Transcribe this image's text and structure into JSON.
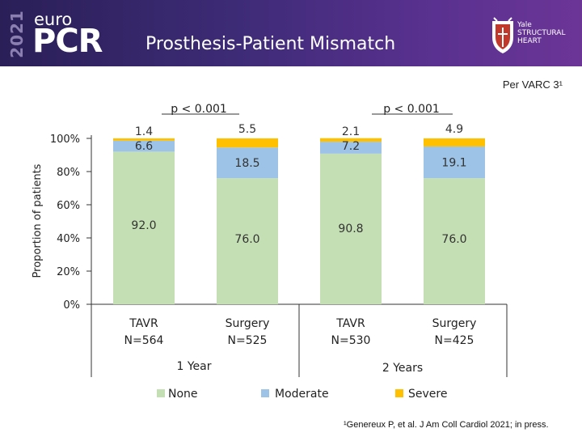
{
  "header": {
    "logo_year": "2021",
    "logo_euro": "euro",
    "logo_pcr": "PCR",
    "title": "Prosthesis-Patient Mismatch",
    "yale_lines": [
      "Yale",
      "STRUCTURAL",
      "HEART"
    ]
  },
  "note": "Per VARC 3¹",
  "footnote": "¹Genereux P, et al. J Am Coll Cardiol 2021; in press.",
  "colors": {
    "none": "#c5dfb4",
    "moderate": "#9dc3e6",
    "severe": "#ffc000",
    "banner": "#3d2b76"
  },
  "chart_data": {
    "type": "bar",
    "stacked": true,
    "title": "",
    "xlabel": "",
    "ylabel": "Proportion of patients",
    "ylim": [
      0,
      100
    ],
    "yticks": [
      "0%",
      "20%",
      "40%",
      "60%",
      "80%",
      "100%"
    ],
    "ytick_values": [
      0,
      20,
      40,
      60,
      80,
      100
    ],
    "categories": [
      {
        "name": "TAVR",
        "n": "N=564"
      },
      {
        "name": "Surgery",
        "n": "N=525"
      },
      {
        "name": "TAVR",
        "n": "N=530"
      },
      {
        "name": "Surgery",
        "n": "N=425"
      }
    ],
    "groups": [
      {
        "label": "1 Year",
        "pvalue": "p < 0.001"
      },
      {
        "label": "2 Years",
        "pvalue": "p < 0.001"
      }
    ],
    "series": [
      {
        "name": "None",
        "values": [
          92.0,
          76.0,
          90.8,
          76.0
        ],
        "labels": [
          "92.0",
          "76.0",
          "90.8",
          "76.0"
        ]
      },
      {
        "name": "Moderate",
        "values": [
          6.6,
          18.5,
          7.2,
          19.1
        ],
        "labels": [
          "6.6",
          "18.5",
          "7.2",
          "19.1"
        ]
      },
      {
        "name": "Severe",
        "values": [
          1.4,
          5.5,
          2.1,
          4.9
        ],
        "labels": [
          "1.4",
          "5.5",
          "2.1",
          "4.9"
        ]
      }
    ],
    "legend_position": "bottom"
  }
}
